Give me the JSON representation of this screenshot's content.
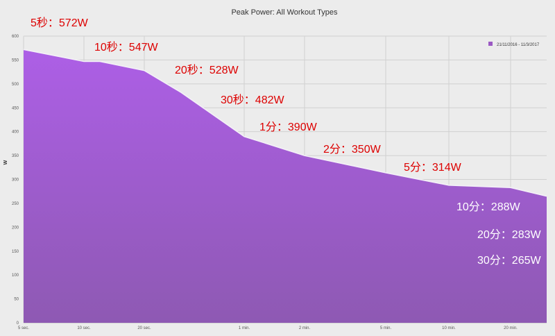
{
  "chart_data": {
    "type": "area",
    "title": "Peak Power: All Workout Types",
    "xlabel": "",
    "ylabel": "W",
    "ylim": [
      0,
      600
    ],
    "yticks": [
      0,
      50,
      100,
      150,
      200,
      250,
      300,
      350,
      400,
      450,
      500,
      550,
      600
    ],
    "x_ticks": [
      "5 sec.",
      "10 sec.",
      "20 sec.",
      "1 min.",
      "2 min.",
      "5 min.",
      "10 min.",
      "20 min."
    ],
    "x_seconds_ticks": [
      5,
      10,
      20,
      60,
      120,
      300,
      600,
      1200
    ],
    "grid": true,
    "legend_position": "top-right",
    "series": [
      {
        "name": "21/11/2016 - 11/3/2017",
        "color": "#9b59c4",
        "x": [
          5,
          10,
          12,
          20,
          30,
          60,
          120,
          300,
          600,
          1200,
          1800
        ],
        "values": [
          572,
          547,
          547,
          528,
          482,
          390,
          350,
          314,
          288,
          283,
          265
        ]
      }
    ],
    "annotations": [
      {
        "text": "5秒：572W",
        "color": "#dd0000"
      },
      {
        "text": "10秒：547W",
        "color": "#dd0000"
      },
      {
        "text": "20秒：528W",
        "color": "#dd0000"
      },
      {
        "text": "30秒：482W",
        "color": "#dd0000"
      },
      {
        "text": "1分：390W",
        "color": "#dd0000"
      },
      {
        "text": "2分：350W",
        "color": "#dd0000"
      },
      {
        "text": "5分：314W",
        "color": "#dd0000"
      },
      {
        "text": "10分：288W",
        "color": "#ffffff"
      },
      {
        "text": "20分：283W",
        "color": "#ffffff"
      },
      {
        "text": "30分：265W",
        "color": "#ffffff"
      }
    ]
  }
}
